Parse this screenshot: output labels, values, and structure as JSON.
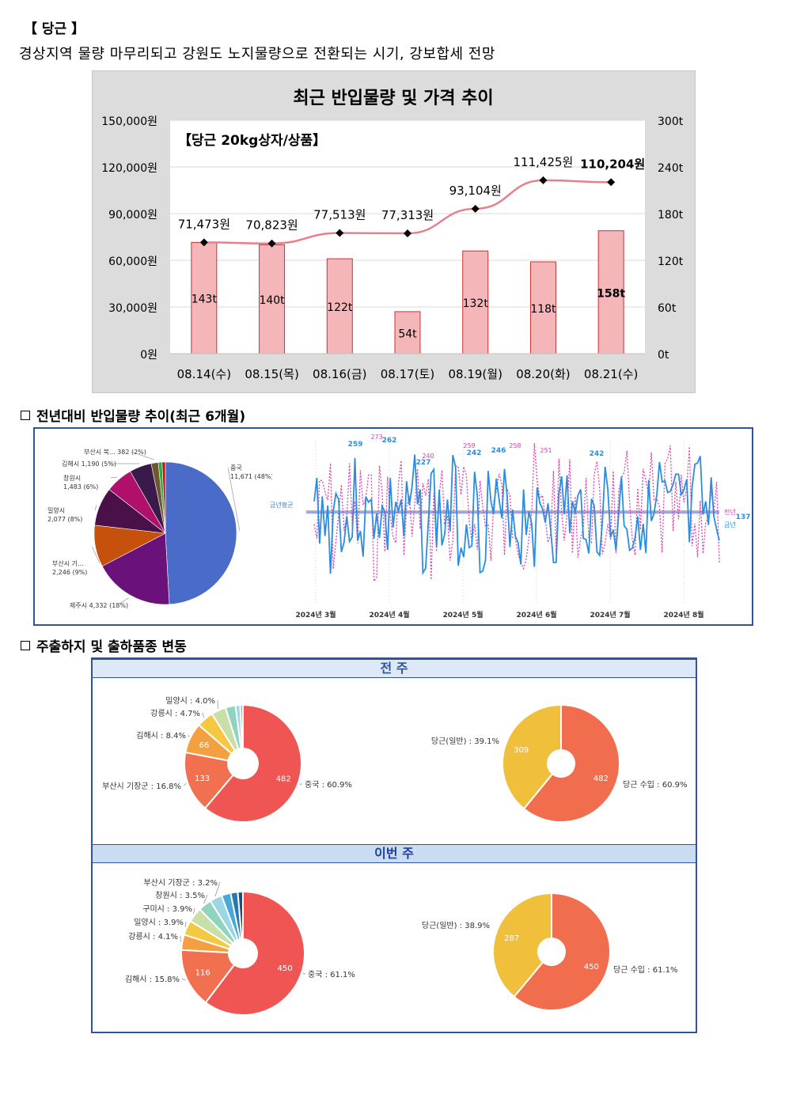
{
  "header": {
    "title": "【 당근 】",
    "summary": "경상지역 물량 마무리되고 강원도 노지물량으로 전환되는 시기, 강보합세 전망"
  },
  "main_chart": {
    "title": "최근 반입물량 및 가격 추이",
    "subtitle": "【당근 20kg상자/상품】"
  },
  "chart_data": [
    {
      "type": "bar",
      "title": "최근 반입물량 및 가격 추이",
      "subtitle": "【당근 20kg상자/상품】",
      "categories": [
        "08.14(수)",
        "08.15(목)",
        "08.16(금)",
        "08.17(토)",
        "08.19(월)",
        "08.20(화)",
        "08.21(수)"
      ],
      "series": [
        {
          "name": "",
          "kind": "bar",
          "axis": "right",
          "values": [
            143,
            140,
            122,
            54,
            132,
            118,
            158
          ],
          "labels": [
            "143t",
            "140t",
            "122t",
            "54t",
            "132t",
            "118t",
            "158t"
          ]
        },
        {
          "name": "",
          "kind": "line",
          "axis": "left",
          "values": [
            71473,
            70823,
            77513,
            77313,
            93104,
            111425,
            110204
          ],
          "labels": [
            "71,473원",
            "70,823원",
            "77,513원",
            "77,313원",
            "93,104원",
            "111,425원",
            "110,204원"
          ]
        }
      ],
      "y_left": {
        "ticks": [
          "0원",
          "30,000원",
          "60,000원",
          "90,000원",
          "120,000원",
          "150,000원"
        ],
        "ylim": [
          0,
          150000
        ]
      },
      "y_right": {
        "ticks": [
          "0t",
          "60t",
          "120t",
          "180t",
          "240t",
          "300t"
        ],
        "ylim": [
          0,
          300
        ]
      },
      "grid": true,
      "bar_color": "#f4b6b9",
      "line_color": "#e8808c"
    },
    {
      "type": "pie",
      "section": "전년대비 반입물량 추이(최근 6개월)",
      "slices": [
        {
          "label": "중국",
          "value": 11671,
          "text": "11,671 (48%)",
          "color": "#4a6bc8"
        },
        {
          "label": "제주시",
          "value": 4332,
          "text": "제주시 4,332 (18%)",
          "color": "#6a127a"
        },
        {
          "label": "부산시 기...",
          "value": 2246,
          "text": "2,246 (9%)",
          "color": "#c5510d"
        },
        {
          "label": "밀양시",
          "value": 2077,
          "text": "2,077 (8%)",
          "color": "#4a1048"
        },
        {
          "label": "창원시",
          "value": 1483,
          "text": "1,483 (6%)",
          "color": "#b0106a"
        },
        {
          "label": "김해시",
          "value": 1190,
          "text": "김해시 1,190 (5%)",
          "color": "#3a1a4a"
        },
        {
          "label": "부산시 북...",
          "value": 382,
          "text": "부산시 북... 382 (2%)",
          "color": "#6b5a30"
        },
        {
          "label": "",
          "value": 200,
          "text": "",
          "color": "#2fa84a"
        },
        {
          "label": "",
          "value": 180,
          "text": "",
          "color": "#c01818"
        }
      ]
    },
    {
      "type": "line",
      "section": "전년대비 반입물량 추이(최근 6개월)",
      "x_ticks": [
        "2024년 3월",
        "2024년 4월",
        "2024년 5월",
        "2024년 6월",
        "2024년 7월",
        "2024년 8월"
      ],
      "series": [
        {
          "name": "금년",
          "color": "#2a8de0",
          "peak_labels": [
            "259",
            "262",
            "227",
            "242",
            "246",
            "242",
            "137"
          ]
        },
        {
          "name": "전년",
          "color": "#e040b0",
          "peak_labels": [
            "273",
            "240",
            "259",
            "258",
            "251"
          ]
        }
      ],
      "avg_label": "금년평균"
    },
    {
      "type": "pie",
      "panel": "전 주",
      "slices": [
        {
          "label": "중국 : 60.9%",
          "value": 482,
          "text": "482",
          "color": "#ee5553"
        },
        {
          "label": "부산시 기장군 : 16.8%",
          "value": 133,
          "text": "133",
          "color": "#f07050"
        },
        {
          "label": "김해시 : 8.4%",
          "value": 66,
          "text": "66",
          "color": "#f4a040"
        },
        {
          "label": "강릉시 : 4.7%",
          "value": 37,
          "text": "",
          "color": "#f4c840"
        },
        {
          "label": "밀양시 : 4.0%",
          "value": 32,
          "text": "",
          "color": "#c8e0a8"
        },
        {
          "label": "",
          "value": 22,
          "text": "",
          "color": "#90d4c0"
        },
        {
          "label": "",
          "value": 10,
          "text": "",
          "color": "#9ad6e4"
        },
        {
          "label": "",
          "value": 6,
          "text": "",
          "color": "#7ab8e0"
        }
      ]
    },
    {
      "type": "pie",
      "panel": "전 주",
      "slices": [
        {
          "label": "당근 수입 : 60.9%",
          "value": 482,
          "text": "482",
          "color": "#f06e4e"
        },
        {
          "label": "당근(일반) : 39.1%",
          "value": 309,
          "text": "309",
          "color": "#f0c03c"
        }
      ]
    },
    {
      "type": "pie",
      "panel": "이번 주",
      "slices": [
        {
          "label": "중국 : 61.1%",
          "value": 450,
          "text": "450",
          "color": "#ee5553"
        },
        {
          "label": "김해시 : 15.8%",
          "value": 116,
          "text": "116",
          "color": "#f07050"
        },
        {
          "label": "강릉시 : 4.1%",
          "value": 30,
          "text": "",
          "color": "#f4a040"
        },
        {
          "label": "밀양시 : 3.9%",
          "value": 29,
          "text": "",
          "color": "#f4c840"
        },
        {
          "label": "구미시 : 3.9%",
          "value": 29,
          "text": "",
          "color": "#c8e0a8"
        },
        {
          "label": "창원시 : 3.5%",
          "value": 26,
          "text": "",
          "color": "#90d4c0"
        },
        {
          "label": "부산시 기장군 : 3.2%",
          "value": 24,
          "text": "",
          "color": "#9ad6e4"
        },
        {
          "label": "",
          "value": 18,
          "text": "",
          "color": "#4aa8d8"
        },
        {
          "label": "",
          "value": 14,
          "text": "",
          "color": "#2a78b0"
        },
        {
          "label": "",
          "value": 10,
          "text": "",
          "color": "#1a4f80"
        }
      ]
    },
    {
      "type": "pie",
      "panel": "이번 주",
      "slices": [
        {
          "label": "당근 수입 : 61.1%",
          "value": 450,
          "text": "450",
          "color": "#f06e4e"
        },
        {
          "label": "당근(일반) : 38.9%",
          "value": 287,
          "text": "287",
          "color": "#f0c03c"
        }
      ]
    }
  ],
  "sections": {
    "yoy": "전년대비 반입물량 추이(최근 6개월)",
    "origin": "주출하지 및 출하품종 변동"
  },
  "panels": {
    "prev": "전 주",
    "curr": "이번 주"
  }
}
